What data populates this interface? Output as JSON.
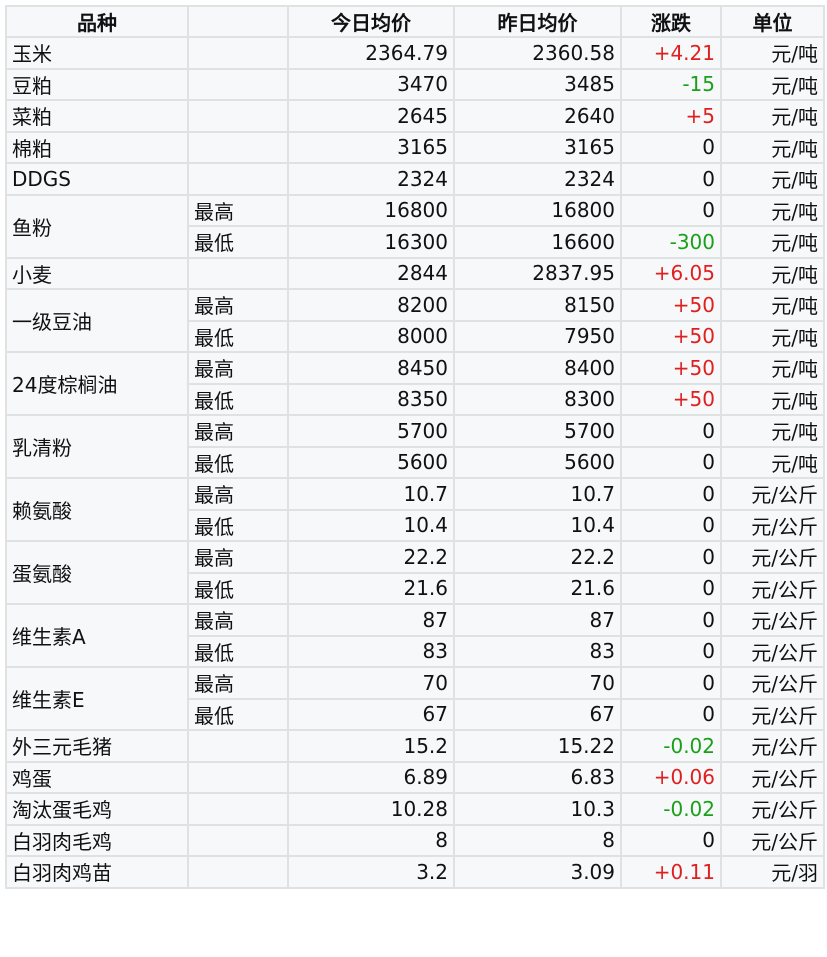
{
  "headers": [
    "品种",
    "",
    "今日均价",
    "昨日均价",
    "涨跌",
    "单位"
  ],
  "colors": {
    "up": "#e02020",
    "down": "#1aa01a"
  },
  "groups": [
    {
      "name": "玉米",
      "rows": [
        {
          "sub": "",
          "today": "2364.79",
          "yesterday": "2360.58",
          "change": "+4.21",
          "unit": "元/吨"
        }
      ]
    },
    {
      "name": "豆粕",
      "rows": [
        {
          "sub": "",
          "today": "3470",
          "yesterday": "3485",
          "change": "-15",
          "unit": "元/吨"
        }
      ]
    },
    {
      "name": "菜粕",
      "rows": [
        {
          "sub": "",
          "today": "2645",
          "yesterday": "2640",
          "change": "+5",
          "unit": "元/吨"
        }
      ]
    },
    {
      "name": "棉粕",
      "rows": [
        {
          "sub": "",
          "today": "3165",
          "yesterday": "3165",
          "change": "0",
          "unit": "元/吨"
        }
      ]
    },
    {
      "name": "DDGS",
      "rows": [
        {
          "sub": "",
          "today": "2324",
          "yesterday": "2324",
          "change": "0",
          "unit": "元/吨"
        }
      ]
    },
    {
      "name": "鱼粉",
      "rows": [
        {
          "sub": "最高",
          "today": "16800",
          "yesterday": "16800",
          "change": "0",
          "unit": "元/吨"
        },
        {
          "sub": "最低",
          "today": "16300",
          "yesterday": "16600",
          "change": "-300",
          "unit": "元/吨"
        }
      ]
    },
    {
      "name": "小麦",
      "rows": [
        {
          "sub": "",
          "today": "2844",
          "yesterday": "2837.95",
          "change": "+6.05",
          "unit": "元/吨"
        }
      ]
    },
    {
      "name": "一级豆油",
      "rows": [
        {
          "sub": "最高",
          "today": "8200",
          "yesterday": "8150",
          "change": "+50",
          "unit": "元/吨"
        },
        {
          "sub": "最低",
          "today": "8000",
          "yesterday": "7950",
          "change": "+50",
          "unit": "元/吨"
        }
      ]
    },
    {
      "name": "24度棕榈油",
      "rows": [
        {
          "sub": "最高",
          "today": "8450",
          "yesterday": "8400",
          "change": "+50",
          "unit": "元/吨"
        },
        {
          "sub": "最低",
          "today": "8350",
          "yesterday": "8300",
          "change": "+50",
          "unit": "元/吨"
        }
      ]
    },
    {
      "name": "乳清粉",
      "rows": [
        {
          "sub": "最高",
          "today": "5700",
          "yesterday": "5700",
          "change": "0",
          "unit": "元/吨"
        },
        {
          "sub": "最低",
          "today": "5600",
          "yesterday": "5600",
          "change": "0",
          "unit": "元/吨"
        }
      ]
    },
    {
      "name": "赖氨酸",
      "rows": [
        {
          "sub": "最高",
          "today": "10.7",
          "yesterday": "10.7",
          "change": "0",
          "unit": "元/公斤"
        },
        {
          "sub": "最低",
          "today": "10.4",
          "yesterday": "10.4",
          "change": "0",
          "unit": "元/公斤"
        }
      ]
    },
    {
      "name": "蛋氨酸",
      "rows": [
        {
          "sub": "最高",
          "today": "22.2",
          "yesterday": "22.2",
          "change": "0",
          "unit": "元/公斤"
        },
        {
          "sub": "最低",
          "today": "21.6",
          "yesterday": "21.6",
          "change": "0",
          "unit": "元/公斤"
        }
      ]
    },
    {
      "name": "维生素A",
      "rows": [
        {
          "sub": "最高",
          "today": "87",
          "yesterday": "87",
          "change": "0",
          "unit": "元/公斤"
        },
        {
          "sub": "最低",
          "today": "83",
          "yesterday": "83",
          "change": "0",
          "unit": "元/公斤"
        }
      ]
    },
    {
      "name": "维生素E",
      "rows": [
        {
          "sub": "最高",
          "today": "70",
          "yesterday": "70",
          "change": "0",
          "unit": "元/公斤"
        },
        {
          "sub": "最低",
          "today": "67",
          "yesterday": "67",
          "change": "0",
          "unit": "元/公斤"
        }
      ]
    },
    {
      "name": "外三元毛猪",
      "rows": [
        {
          "sub": "",
          "today": "15.2",
          "yesterday": "15.22",
          "change": "-0.02",
          "unit": "元/公斤"
        }
      ]
    },
    {
      "name": "鸡蛋",
      "rows": [
        {
          "sub": "",
          "today": "6.89",
          "yesterday": "6.83",
          "change": "+0.06",
          "unit": "元/公斤"
        }
      ]
    },
    {
      "name": "淘汰蛋毛鸡",
      "rows": [
        {
          "sub": "",
          "today": "10.28",
          "yesterday": "10.3",
          "change": "-0.02",
          "unit": "元/公斤"
        }
      ]
    },
    {
      "name": "白羽肉毛鸡",
      "rows": [
        {
          "sub": "",
          "today": "8",
          "yesterday": "8",
          "change": "0",
          "unit": "元/公斤"
        }
      ]
    },
    {
      "name": "白羽肉鸡苗",
      "rows": [
        {
          "sub": "",
          "today": "3.2",
          "yesterday": "3.09",
          "change": "+0.11",
          "unit": "元/羽"
        }
      ]
    }
  ]
}
